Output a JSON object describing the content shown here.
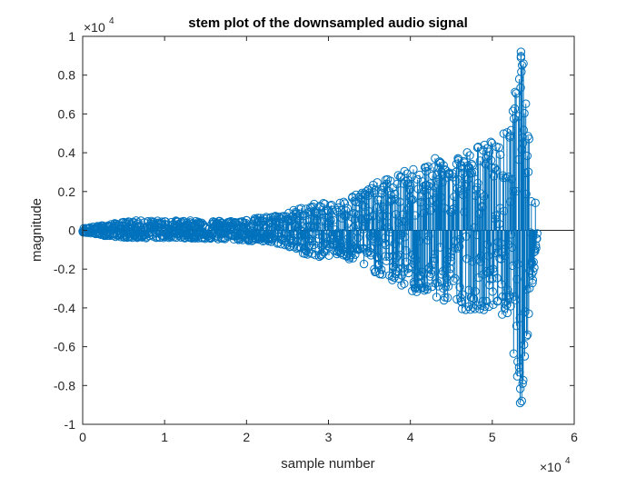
{
  "chart_data": {
    "type": "stem",
    "title": "stem plot of the downsampled audio signal",
    "xlabel": "sample number",
    "ylabel": "magnitude",
    "xlim": [
      0,
      6
    ],
    "ylim": [
      -1,
      1
    ],
    "x_multiplier": {
      "base": "×10",
      "exponent": "4"
    },
    "y_multiplier": {
      "base": "×10",
      "exponent": "4"
    },
    "xticks": [
      "0",
      "1",
      "2",
      "3",
      "4",
      "5",
      "6"
    ],
    "yticks": [
      "-1",
      "-0.8",
      "-0.6",
      "-0.4",
      "-0.2",
      "0",
      "0.2",
      "0.4",
      "0.6",
      "0.8",
      "1"
    ],
    "color": "#0072BD",
    "marker": "circle",
    "grid": false,
    "series": [
      {
        "x_range": [
          0,
          5.55
        ],
        "envelope": [
          {
            "x": 0.0,
            "top": 0.01,
            "bottom": -0.01
          },
          {
            "x": 0.3,
            "top": 0.03,
            "bottom": -0.03
          },
          {
            "x": 0.6,
            "top": 0.05,
            "bottom": -0.04
          },
          {
            "x": 1.2,
            "top": 0.05,
            "bottom": -0.04
          },
          {
            "x": 1.9,
            "top": 0.05,
            "bottom": -0.05
          },
          {
            "x": 2.4,
            "top": 0.08,
            "bottom": -0.07
          },
          {
            "x": 2.8,
            "top": 0.14,
            "bottom": -0.14
          },
          {
            "x": 3.1,
            "top": 0.14,
            "bottom": -0.13
          },
          {
            "x": 3.5,
            "top": 0.23,
            "bottom": -0.2
          },
          {
            "x": 4.0,
            "top": 0.32,
            "bottom": -0.32
          },
          {
            "x": 4.35,
            "top": 0.38,
            "bottom": -0.36
          },
          {
            "x": 4.65,
            "top": 0.41,
            "bottom": -0.41
          },
          {
            "x": 5.0,
            "top": 0.47,
            "bottom": -0.41
          },
          {
            "x": 5.2,
            "top": 0.52,
            "bottom": -0.47
          },
          {
            "x": 5.35,
            "top": 0.92,
            "bottom": -0.89
          },
          {
            "x": 5.55,
            "top": 0.05,
            "bottom": -0.05
          }
        ]
      }
    ]
  }
}
